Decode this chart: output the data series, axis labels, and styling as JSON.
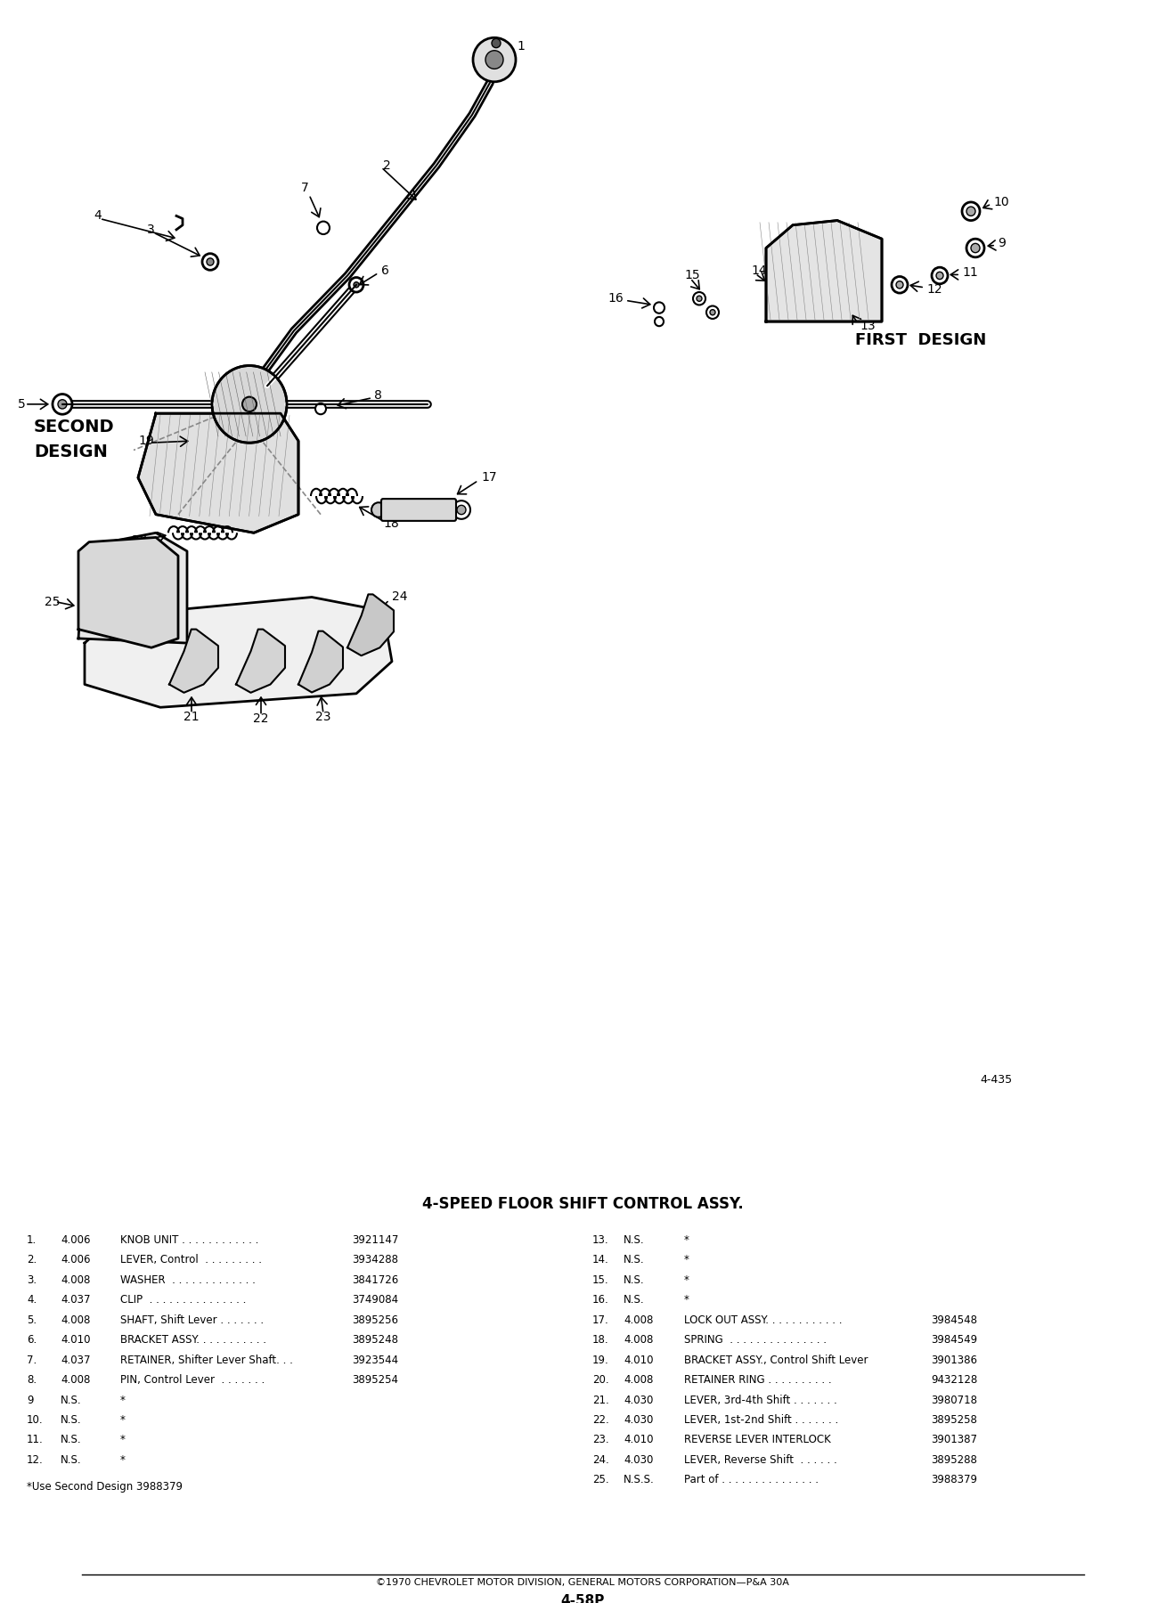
{
  "title": "4-SPEED FLOOR SHIFT CONTROL ASSY.",
  "page_ref": "4-435",
  "page_bottom": "4-58P",
  "copyright": "©1970 CHEVROLET MOTOR DIVISION, GENERAL MOTORS CORPORATION—P&A 30A",
  "first_design_label": "FIRST  DESIGN",
  "second_design_label_1": "SECOND",
  "second_design_label_2": "DESIGN",
  "footnote": "*Use Second Design 3988379",
  "left_parts": [
    {
      "num": "1.",
      "qty": "4.006",
      "desc": "KNOB UNIT . . . . . . . . . . . .",
      "part": "3921147"
    },
    {
      "num": "2.",
      "qty": "4.006",
      "desc": "LEVER, Control  . . . . . . . . .",
      "part": "3934288"
    },
    {
      "num": "3.",
      "qty": "4.008",
      "desc": "WASHER  . . . . . . . . . . . . .",
      "part": "3841726"
    },
    {
      "num": "4.",
      "qty": "4.037",
      "desc": "CLIP  . . . . . . . . . . . . . . .",
      "part": "3749084"
    },
    {
      "num": "5.",
      "qty": "4.008",
      "desc": "SHAFT, Shift Lever . . . . . . .",
      "part": "3895256"
    },
    {
      "num": "6.",
      "qty": "4.010",
      "desc": "BRACKET ASSY. . . . . . . . . . .",
      "part": "3895248"
    },
    {
      "num": "7.",
      "qty": "4.037",
      "desc": "RETAINER, Shifter Lever Shaft. . .",
      "part": "3923544"
    },
    {
      "num": "8.",
      "qty": "4.008",
      "desc": "PIN, Control Lever  . . . . . . .",
      "part": "3895254"
    },
    {
      "num": "9",
      "qty": "N.S.",
      "desc": "*",
      "part": ""
    },
    {
      "num": "10.",
      "qty": "N.S.",
      "desc": "*",
      "part": ""
    },
    {
      "num": "11.",
      "qty": "N.S.",
      "desc": "*",
      "part": ""
    },
    {
      "num": "12.",
      "qty": "N.S.",
      "desc": "*",
      "part": ""
    }
  ],
  "right_parts": [
    {
      "num": "13.",
      "qty": "N.S.",
      "desc": "*",
      "part": ""
    },
    {
      "num": "14.",
      "qty": "N.S.",
      "desc": "*",
      "part": ""
    },
    {
      "num": "15.",
      "qty": "N.S.",
      "desc": "*",
      "part": ""
    },
    {
      "num": "16.",
      "qty": "N.S.",
      "desc": "*",
      "part": ""
    },
    {
      "num": "17.",
      "qty": "4.008",
      "desc": "LOCK OUT ASSY. . . . . . . . . . . .",
      "part": "3984548"
    },
    {
      "num": "18.",
      "qty": "4.008",
      "desc": "SPRING  . . . . . . . . . . . . . . .",
      "part": "3984549"
    },
    {
      "num": "19.",
      "qty": "4.010",
      "desc": "BRACKET ASSY., Control Shift Lever",
      "part": "3901386"
    },
    {
      "num": "20.",
      "qty": "4.008",
      "desc": "RETAINER RING . . . . . . . . . .",
      "part": "9432128"
    },
    {
      "num": "21.",
      "qty": "4.030",
      "desc": "LEVER, 3rd-4th Shift . . . . . . .",
      "part": "3980718"
    },
    {
      "num": "22.",
      "qty": "4.030",
      "desc": "LEVER, 1st-2nd Shift . . . . . . .",
      "part": "3895258"
    },
    {
      "num": "23.",
      "qty": "4.010",
      "desc": "REVERSE LEVER INTERLOCK",
      "part": "3901387"
    },
    {
      "num": "24.",
      "qty": "4.030",
      "desc": "LEVER, Reverse Shift  . . . . . .",
      "part": "3895288"
    },
    {
      "num": "25.",
      "qty": "N.S.S.",
      "desc": "Part of . . . . . . . . . . . . . . .",
      "part": "3988379"
    }
  ]
}
